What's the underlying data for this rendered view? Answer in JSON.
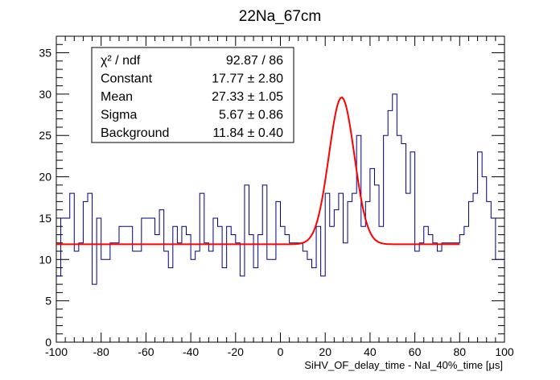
{
  "chart_data": {
    "type": "histogram",
    "title": "22Na_67cm",
    "xlabel": "SiHV_OF_delay_time - NaI_40%_time [μs]",
    "ylabel": "",
    "xlim": [
      -100,
      100
    ],
    "ylim": [
      0,
      37
    ],
    "bin_width": 2,
    "x_ticks": [
      "-100",
      "-80",
      "-60",
      "-40",
      "-20",
      "0",
      "20",
      "40",
      "60",
      "80",
      "100"
    ],
    "y_ticks": [
      "0",
      "5",
      "10",
      "15",
      "20",
      "25",
      "30",
      "35"
    ],
    "histogram_color": "#000080",
    "bin_edges_start": -100,
    "counts": [
      8,
      15,
      15,
      18,
      11,
      12,
      17,
      18,
      7,
      15,
      10,
      10,
      12,
      12,
      14,
      14,
      14,
      11,
      11,
      15,
      15,
      15,
      13,
      16,
      11,
      9,
      14,
      12,
      14,
      13,
      10,
      11,
      18,
      12,
      11,
      15,
      14,
      9,
      14,
      13,
      12,
      8,
      19,
      13,
      9,
      13,
      19,
      10,
      10,
      17,
      14,
      13,
      12,
      12,
      12,
      11,
      10,
      9,
      14,
      8,
      18,
      14,
      16,
      18,
      12,
      17,
      18,
      25,
      14,
      17,
      21,
      19,
      14,
      25,
      28,
      30,
      25,
      24,
      18,
      23,
      11,
      12,
      14,
      13,
      12,
      11,
      12,
      12,
      12,
      12,
      13,
      14,
      17,
      18,
      23,
      20,
      17,
      15,
      10,
      10
    ],
    "fit": {
      "name": "gaus + pol0",
      "color": "#ff0000",
      "x_range": [
        -100,
        80
      ],
      "constant": 17.77,
      "mean": 27.33,
      "sigma": 5.67,
      "background": 11.84
    },
    "stats_box": {
      "position": "top-left",
      "rows": [
        {
          "label": "χ² / ndf",
          "value": "92.87 / 86"
        },
        {
          "label": "Constant",
          "value": "17.77 ± 2.80"
        },
        {
          "label": "Mean",
          "value": "27.33 ± 1.05"
        },
        {
          "label": "Sigma",
          "value": "5.67 ± 0.86"
        },
        {
          "label": "Background",
          "value": "11.84 ± 0.40"
        }
      ]
    }
  }
}
